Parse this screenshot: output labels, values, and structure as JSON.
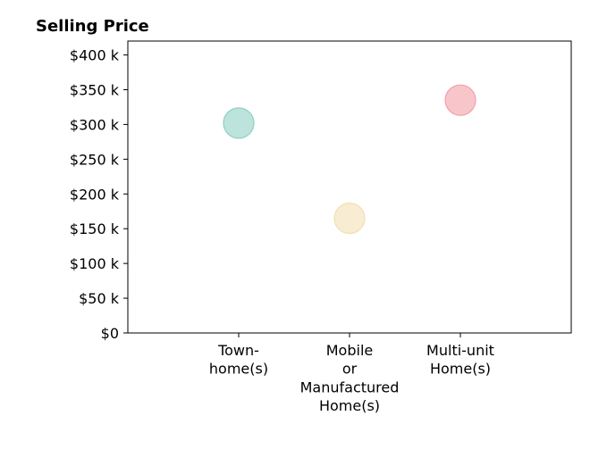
{
  "chart_data": {
    "type": "scatter",
    "title": "Selling Price",
    "xlabel": "",
    "ylabel": "",
    "ylim": [
      0,
      420000
    ],
    "xlim": [
      -1,
      3
    ],
    "y_ticks": [
      {
        "value": 0,
        "label": "$0"
      },
      {
        "value": 50000,
        "label": "$50 k"
      },
      {
        "value": 100000,
        "label": "$100 k"
      },
      {
        "value": 150000,
        "label": "$150 k"
      },
      {
        "value": 200000,
        "label": "$200 k"
      },
      {
        "value": 250000,
        "label": "$250 k"
      },
      {
        "value": 300000,
        "label": "$300 k"
      },
      {
        "value": 350000,
        "label": "$350 k"
      },
      {
        "value": 400000,
        "label": "$400 k"
      }
    ],
    "categories": [
      {
        "label_lines": [
          "Town-",
          "home(s)"
        ]
      },
      {
        "label_lines": [
          "Mobile",
          "or",
          "Manufactured",
          "Home(s)"
        ]
      },
      {
        "label_lines": [
          "Multi-unit",
          "Home(s)"
        ]
      }
    ],
    "points": [
      {
        "x": 0,
        "y": 302000,
        "color": "#8fd0c4"
      },
      {
        "x": 1,
        "y": 165000,
        "color": "#f3dfb4"
      },
      {
        "x": 2,
        "y": 335000,
        "color": "#f2a0a8"
      }
    ],
    "grid": false,
    "legend": "none"
  }
}
